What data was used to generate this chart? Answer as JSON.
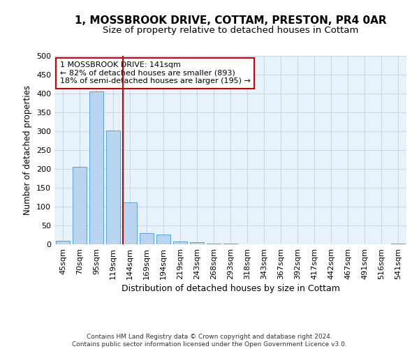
{
  "title": "1, MOSSBROOK DRIVE, COTTAM, PRESTON, PR4 0AR",
  "subtitle": "Size of property relative to detached houses in Cottam",
  "xlabel": "Distribution of detached houses by size in Cottam",
  "ylabel": "Number of detached properties",
  "bar_labels": [
    "45sqm",
    "70sqm",
    "95sqm",
    "119sqm",
    "144sqm",
    "169sqm",
    "194sqm",
    "219sqm",
    "243sqm",
    "268sqm",
    "293sqm",
    "318sqm",
    "343sqm",
    "367sqm",
    "392sqm",
    "417sqm",
    "442sqm",
    "467sqm",
    "491sqm",
    "516sqm",
    "541sqm"
  ],
  "bar_values": [
    10,
    205,
    405,
    302,
    112,
    30,
    26,
    8,
    6,
    1,
    1,
    0,
    0,
    0,
    0,
    0,
    0,
    0,
    0,
    0,
    2
  ],
  "bar_color": "#b8d4ee",
  "bar_edge_color": "#5a9fd4",
  "property_line_index": 4,
  "property_line_color": "#cc0000",
  "annotation_line1": "1 MOSSBROOK DRIVE: 141sqm",
  "annotation_line2": "← 82% of detached houses are smaller (893)",
  "annotation_line3": "18% of semi-detached houses are larger (195) →",
  "annotation_box_color": "#cc0000",
  "annotation_box_bg": "#ffffff",
  "ylim": [
    0,
    500
  ],
  "yticks": [
    0,
    50,
    100,
    150,
    200,
    250,
    300,
    350,
    400,
    450,
    500
  ],
  "grid_color": "#c8d8ea",
  "background_color": "#e8f2fc",
  "footer_text": "Contains HM Land Registry data © Crown copyright and database right 2024.\nContains public sector information licensed under the Open Government Licence v3.0.",
  "title_fontsize": 11,
  "subtitle_fontsize": 9.5,
  "xlabel_fontsize": 9,
  "ylabel_fontsize": 8.5,
  "tick_fontsize": 8,
  "footer_fontsize": 6.5
}
